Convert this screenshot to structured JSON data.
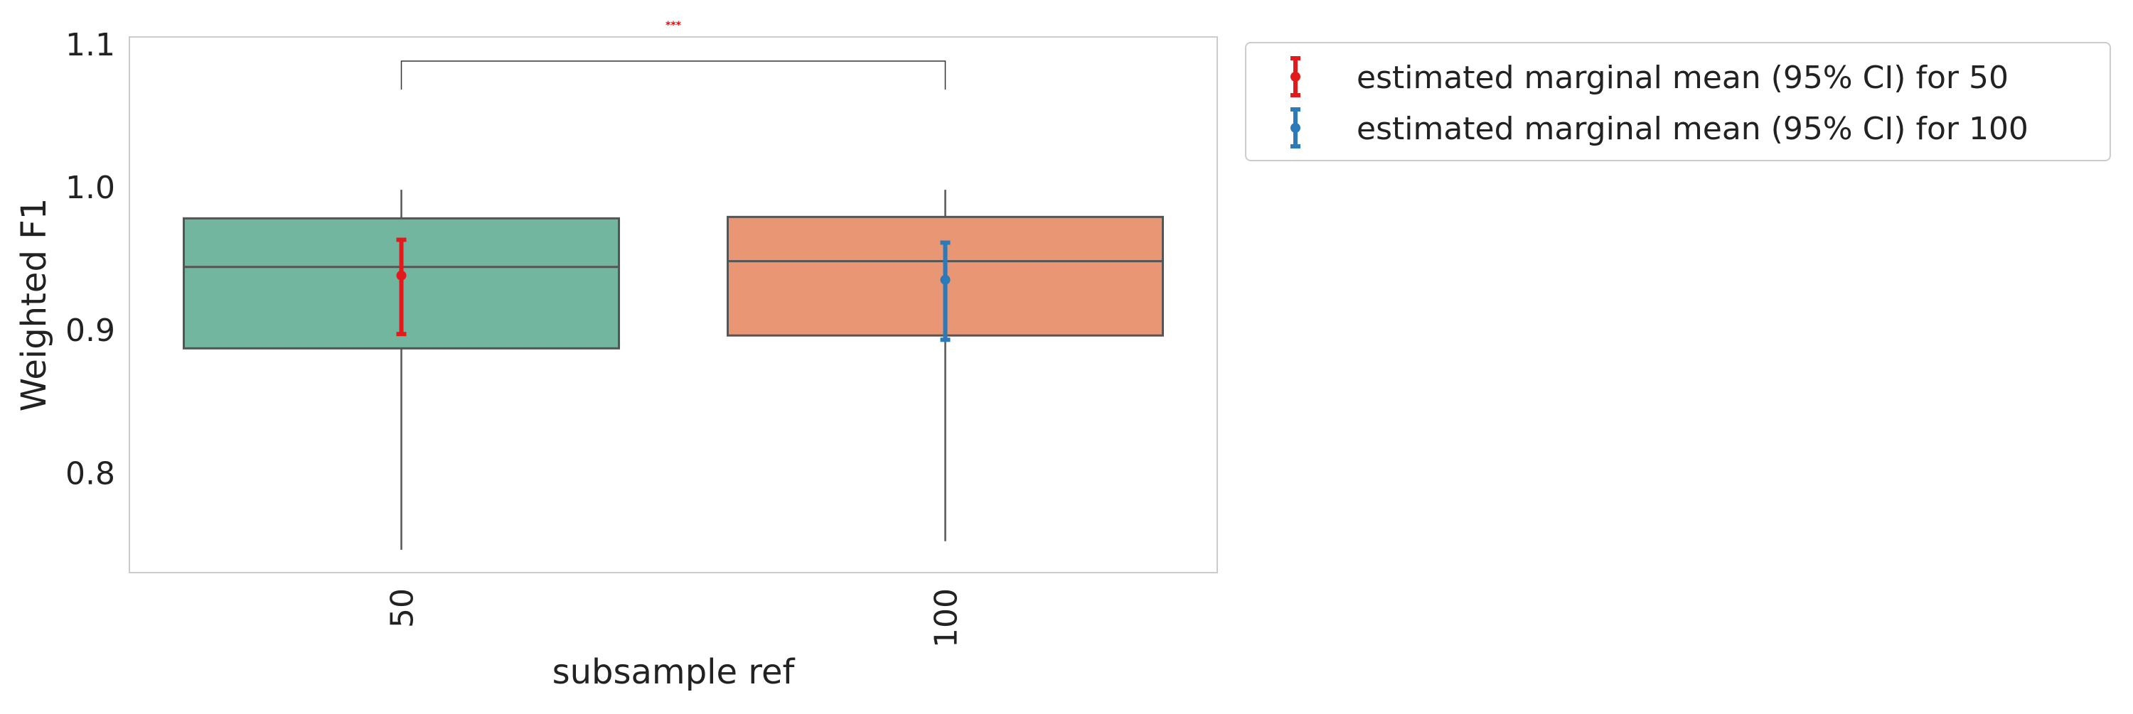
{
  "chart_data": {
    "type": "box",
    "categories": [
      "50",
      "100"
    ],
    "xlabel": "subsample ref",
    "ylabel": "Weighted F1",
    "ylim": [
      0.73,
      1.105
    ],
    "yticks": [
      0.8,
      0.9,
      1.0,
      1.1
    ],
    "ytick_labels": [
      "0.8",
      "0.9",
      "1.0",
      "1.1"
    ],
    "grid": false,
    "x_tick_rotation": "vertical",
    "boxes": [
      {
        "category": "50",
        "whisker_low": 0.746,
        "q1": 0.887,
        "median": 0.944,
        "q3": 0.978,
        "whisker_high": 0.998,
        "color": "#72b6a0"
      },
      {
        "category": "100",
        "whisker_low": 0.752,
        "q1": 0.896,
        "median": 0.948,
        "q3": 0.979,
        "whisker_high": 0.998,
        "color": "#e99675"
      }
    ],
    "series": [
      {
        "name": "estimated marginal mean (95% CI) for 50",
        "category": "50",
        "mean": 0.938,
        "ci_low": 0.897,
        "ci_high": 0.963,
        "color": "#e31a1c"
      },
      {
        "name": "estimated marginal mean (95% CI) for 100",
        "category": "100",
        "mean": 0.935,
        "ci_low": 0.893,
        "ci_high": 0.961,
        "color": "#2b7bba"
      }
    ],
    "annotation": {
      "text": "***",
      "between": [
        "50",
        "100"
      ],
      "color": "#ff0000"
    },
    "legend_position": "outside upper right"
  }
}
